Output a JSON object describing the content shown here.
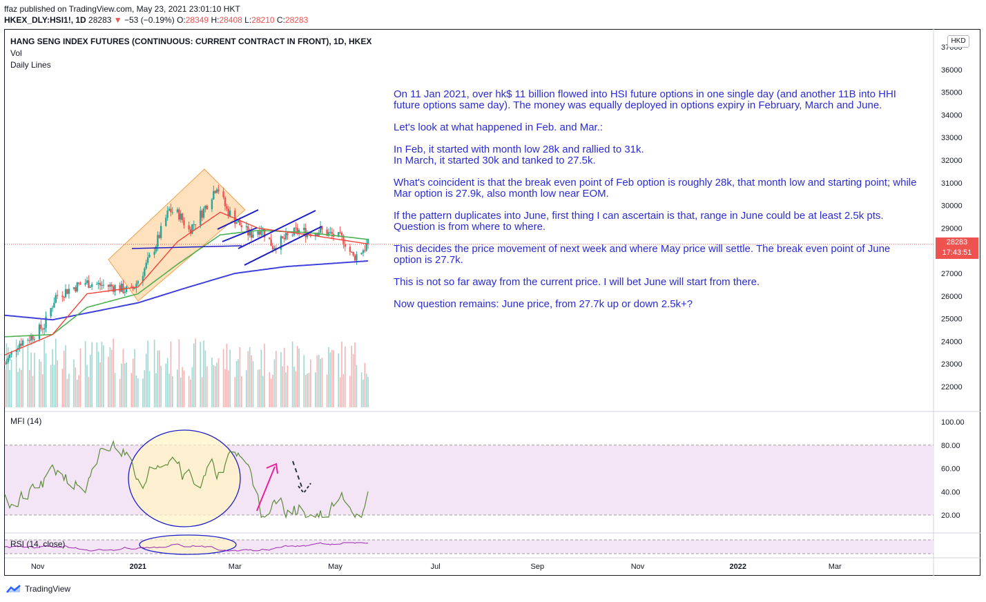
{
  "header": {
    "published": "ffaz published on TradingView.com, May 23, 2021 23:01:10 HKT",
    "symbol": "HKEX_DLY:HSI1!, 1D",
    "last": "28283",
    "change_arrow": "▼",
    "change": "−53 (−0.19%)",
    "o_label": "O:",
    "o": "28349",
    "h_label": "H:",
    "h": "28408",
    "l_label": "L:",
    "l": "28210",
    "c_label": "C:",
    "c": "28283"
  },
  "legend": {
    "title": "HANG SENG INDEX FUTURES (CONTINUOUS: CURRENT CONTRACT IN FRONT), 1D, HKEX",
    "vol": "Vol",
    "daily_lines": "Daily Lines",
    "mfi": "MFI (14)",
    "rsi": "RSI (14, close)"
  },
  "currency_badge": "HKD",
  "price_tag": {
    "price": "28283",
    "countdown": "17:43:51",
    "color": "#ef5350"
  },
  "annotation": {
    "paragraphs": [
      "On 11 Jan 2021, over hk$ 11 billion flowed into HSI future options in one single day (and another 11B into HHI future options same day). The money was equally deployed in options expiry in February, March and June.",
      "Let's look at what happened in Feb. and Mar.:",
      "In Feb, it started with month low 28k and rallied to 31k.\nIn March, it started 30k and tanked to 27.5k.",
      "What's coincident is that the break even point of Feb option is roughly 28k, that month low and starting point; while Mar option is 27.9k, also month low near EOM.",
      "If the pattern duplicates into June, first thing I can ascertain is that, range in June could be at least 2.5k pts. Question is from where to where.",
      "This decides the price movement of next week and where May price will settle. The break even point of June option is 27.7k.",
      "This is not so far away from the current price. I will bet June will start from there.",
      "Now question remains: June price, from 27.7k up or down 2.5k+?"
    ],
    "color": "#2b2bd6"
  },
  "footer": {
    "brand": "TradingView"
  },
  "colors": {
    "up": "#26a69a",
    "down": "#ef5350",
    "ma_fast": "#f44336",
    "ma_mid": "#4caf50",
    "ma_slow": "#3f3fdc",
    "mfi_line": "#5b8a3a",
    "rsi_line": "#9c27b0",
    "band_fill": "#f3e5f5",
    "rect_fill": "#ffd7a8",
    "ellipse_fill": "#fff3c4",
    "annot": "#1c1cc8",
    "arrow": "#e91e9b"
  },
  "chart_data": {
    "type": "candlestick",
    "y_axis": {
      "min": 21000,
      "max": 37000,
      "ticks": [
        22000,
        23000,
        24000,
        25000,
        26000,
        27000,
        28000,
        29000,
        30000,
        31000,
        32000,
        33000,
        34000,
        35000,
        36000,
        37000
      ]
    },
    "x_ticks": [
      {
        "label": "Nov",
        "bold": false
      },
      {
        "label": "2021",
        "bold": true
      },
      {
        "label": "Mar",
        "bold": false
      },
      {
        "label": "May",
        "bold": false
      },
      {
        "label": "Jul",
        "bold": false
      },
      {
        "label": "Sep",
        "bold": false
      },
      {
        "label": "Nov",
        "bold": false
      },
      {
        "label": "2022",
        "bold": true
      },
      {
        "label": "Mar",
        "bold": false
      }
    ],
    "x_range": [
      "2020-10-12",
      "2022-04-30"
    ],
    "last_date": "2021-05-21",
    "last_close": 28283,
    "price_path": [
      [
        "2020-10-12",
        23000
      ],
      [
        "2020-10-20",
        23900
      ],
      [
        "2020-10-28",
        24200
      ],
      [
        "2020-11-05",
        24700
      ],
      [
        "2020-11-12",
        26000
      ],
      [
        "2020-11-20",
        26300
      ],
      [
        "2020-11-30",
        26600
      ],
      [
        "2020-12-08",
        26500
      ],
      [
        "2020-12-18",
        26400
      ],
      [
        "2020-12-28",
        26200
      ],
      [
        "2021-01-05",
        27200
      ],
      [
        "2021-01-12",
        28300
      ],
      [
        "2021-01-20",
        29800
      ],
      [
        "2021-01-26",
        29600
      ],
      [
        "2021-02-01",
        28900
      ],
      [
        "2021-02-10",
        29800
      ],
      [
        "2021-02-18",
        30900
      ],
      [
        "2021-02-24",
        29800
      ],
      [
        "2021-03-02",
        29300
      ],
      [
        "2021-03-10",
        28700
      ],
      [
        "2021-03-17",
        29000
      ],
      [
        "2021-03-24",
        28200
      ],
      [
        "2021-03-31",
        28500
      ],
      [
        "2021-04-08",
        28900
      ],
      [
        "2021-04-15",
        28800
      ],
      [
        "2021-04-22",
        28900
      ],
      [
        "2021-04-29",
        28700
      ],
      [
        "2021-05-06",
        28500
      ],
      [
        "2021-05-12",
        27700
      ],
      [
        "2021-05-17",
        28000
      ],
      [
        "2021-05-21",
        28283
      ]
    ],
    "ma_fast": [
      [
        "2020-10-12",
        23400
      ],
      [
        "2020-11-10",
        24300
      ],
      [
        "2020-12-01",
        26100
      ],
      [
        "2021-01-01",
        26400
      ],
      [
        "2021-01-25",
        28400
      ],
      [
        "2021-02-20",
        29700
      ],
      [
        "2021-03-15",
        29000
      ],
      [
        "2021-04-15",
        28700
      ],
      [
        "2021-05-21",
        28300
      ]
    ],
    "ma_mid": [
      [
        "2020-10-12",
        24200
      ],
      [
        "2020-11-10",
        24300
      ],
      [
        "2020-12-01",
        25500
      ],
      [
        "2021-01-01",
        26100
      ],
      [
        "2021-01-25",
        27400
      ],
      [
        "2021-02-20",
        28700
      ],
      [
        "2021-03-15",
        28900
      ],
      [
        "2021-04-15",
        28800
      ],
      [
        "2021-05-21",
        28500
      ]
    ],
    "ma_slow": [
      [
        "2020-10-12",
        25150
      ],
      [
        "2020-11-10",
        24950
      ],
      [
        "2020-12-01",
        25250
      ],
      [
        "2021-01-01",
        25700
      ],
      [
        "2021-02-01",
        26400
      ],
      [
        "2021-03-01",
        27000
      ],
      [
        "2021-04-01",
        27300
      ],
      [
        "2021-05-21",
        27550
      ]
    ],
    "mfi": {
      "range": [
        0,
        100
      ],
      "band": [
        20,
        80
      ],
      "ticks": [
        20,
        40,
        60,
        80,
        100
      ]
    },
    "rsi": {
      "band": [
        30,
        70
      ]
    }
  }
}
